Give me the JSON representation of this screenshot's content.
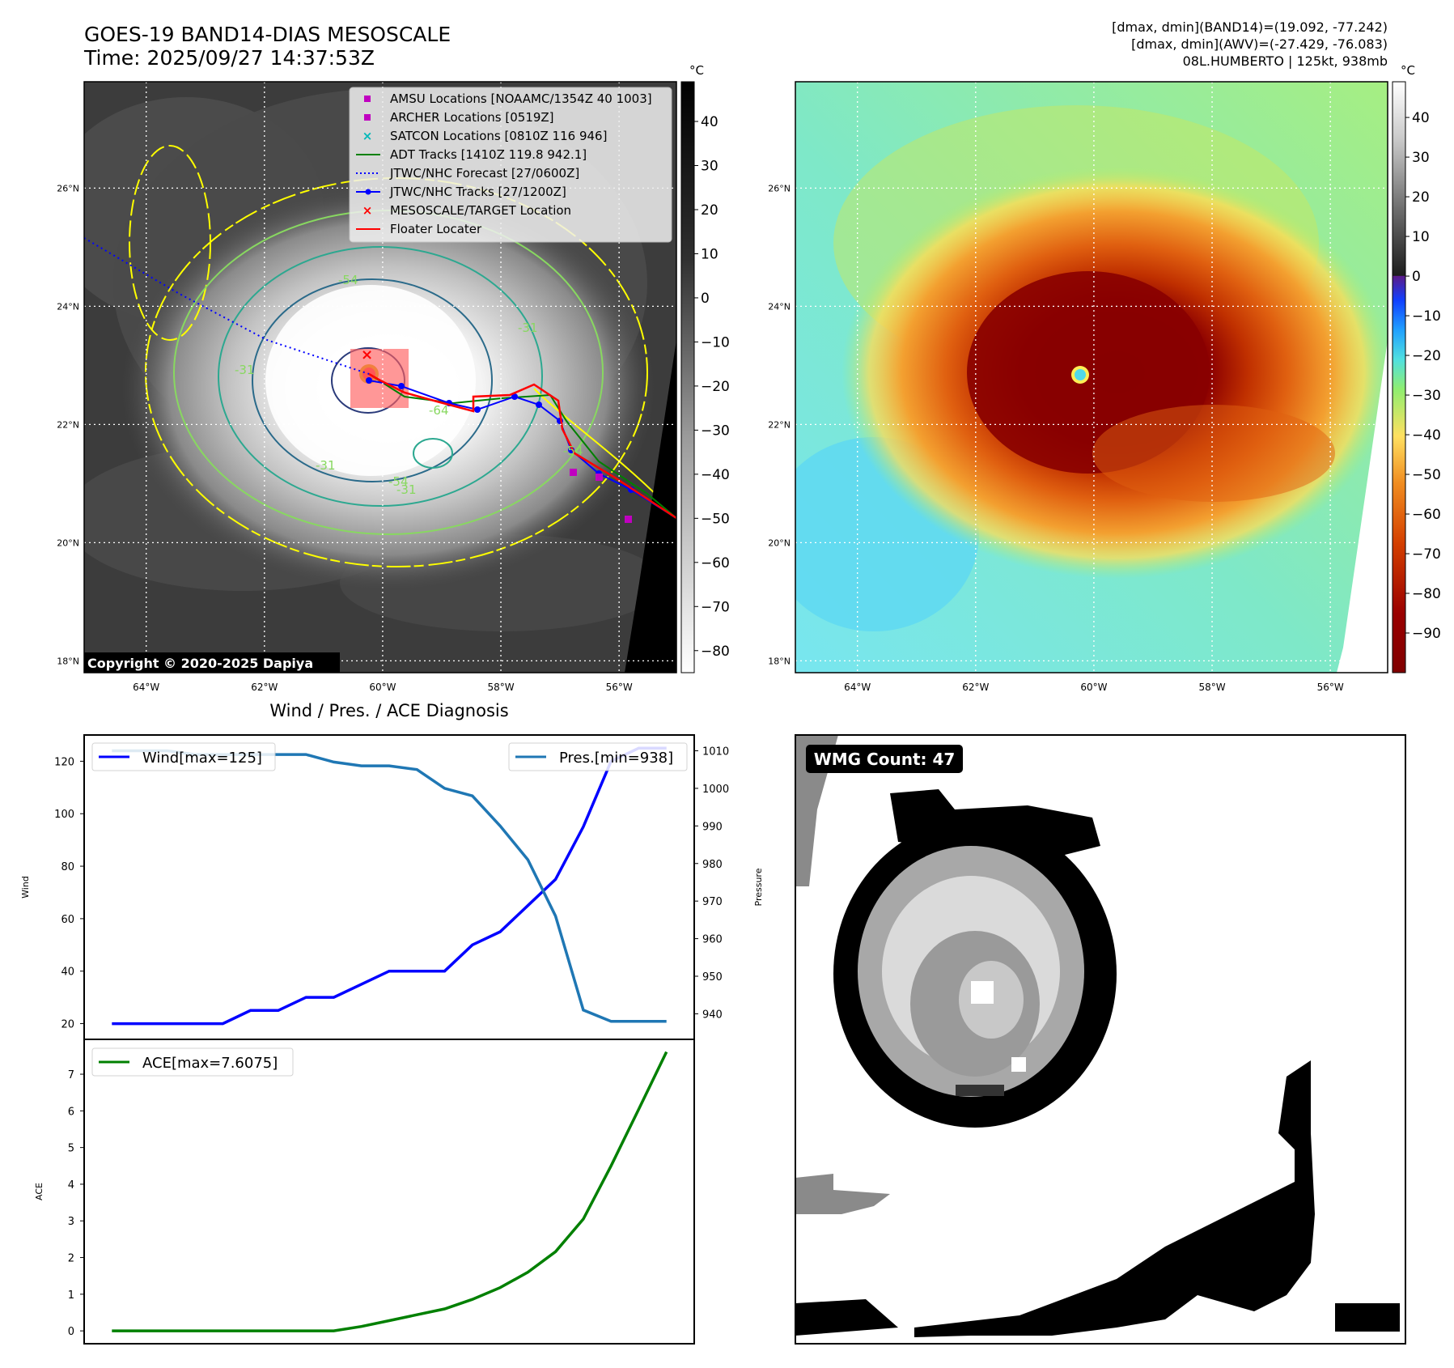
{
  "header": {
    "title_line1": "GOES-19 BAND14-DIAS MESOSCALE",
    "title_line2": "Time: 2025/09/27 14:37:53Z",
    "stats_line1": "[dmax, dmin](BAND14)=(19.092, -77.242)",
    "stats_line2": "[dmax, dmin](AWV)=(-27.429, -76.083)",
    "stats_line3": "08L.HUMBERTO | 125kt, 938mb"
  },
  "maps": {
    "lat_labels": [
      "26°N",
      "24°N",
      "22°N",
      "20°N",
      "18°N"
    ],
    "lat_values": [
      26,
      24,
      22,
      20,
      18
    ],
    "lon_labels": [
      "64°W",
      "62°W",
      "60°W",
      "58°W",
      "56°W"
    ],
    "lon_values": [
      -64,
      -62,
      -60,
      -58,
      -56
    ],
    "lon_range": [
      -65.05,
      -55.03
    ],
    "lat_range": [
      17.8,
      27.8
    ],
    "storm_center": [
      -60.2,
      22.65
    ],
    "copyright": "Copyright © 2020-2025 Dapiya",
    "contour_labels": [
      "-54",
      "-31",
      "-31",
      "-31",
      "-64",
      "-54",
      "-54",
      "-31"
    ]
  },
  "legend": [
    {
      "label": "AMSU Locations [NOAAMC/1354Z 40 1003]",
      "marker": "square",
      "color": "#c000c0"
    },
    {
      "label": "ARCHER Locations [0519Z]",
      "marker": "square",
      "color": "#c000c0"
    },
    {
      "label": "SATCON Locations [0810Z 116 946]",
      "marker": "x",
      "color": "#00b8b8"
    },
    {
      "label": "ADT Tracks [1410Z 119.8 942.1]",
      "marker": "line",
      "color": "#008000"
    },
    {
      "label": "JTWC/NHC Forecast [27/0600Z]",
      "marker": "dotted",
      "color": "#0000ff"
    },
    {
      "label": "JTWC/NHC Tracks [27/1200Z]",
      "marker": "line-dot",
      "color": "#0000ff"
    },
    {
      "label": "MESOSCALE/TARGET Location",
      "marker": "x",
      "color": "#ff0000"
    },
    {
      "label": "Floater Locater",
      "marker": "line",
      "color": "#ff0000"
    }
  ],
  "colorbar_left": {
    "unit": "°C",
    "ticks": [
      "40",
      "30",
      "20",
      "10",
      "0",
      "−10",
      "−20",
      "−30",
      "−40",
      "−50",
      "−60",
      "−70",
      "−80"
    ],
    "tick_values": [
      40,
      30,
      20,
      10,
      0,
      -10,
      -20,
      -30,
      -40,
      -50,
      -60,
      -70,
      -80
    ],
    "range": [
      -85,
      49
    ]
  },
  "colorbar_right": {
    "unit": "°C",
    "ticks": [
      "40",
      "30",
      "20",
      "10",
      "0",
      "−10",
      "−20",
      "−30",
      "−40",
      "−50",
      "−60",
      "−70",
      "−80",
      "−90"
    ],
    "tick_values": [
      40,
      30,
      20,
      10,
      0,
      -10,
      -20,
      -30,
      -40,
      -50,
      -60,
      -70,
      -80,
      -90
    ],
    "range": [
      -100,
      49
    ]
  },
  "diagnosis_title": "Wind / Pres. / ACE Diagnosis",
  "chart_data": [
    {
      "type": "line",
      "title": "Wind / Pres. / ACE Diagnosis",
      "ylabel": "Wind",
      "ylabel_right": "Pressure",
      "ylim": [
        14,
        130
      ],
      "ylim_right": [
        933.2,
        1014.2
      ],
      "xlim": [
        -1,
        21
      ],
      "yticks": [
        20,
        40,
        60,
        80,
        100,
        120
      ],
      "yticks_right": [
        940,
        950,
        960,
        970,
        980,
        990,
        1000,
        1010
      ],
      "x": [
        0,
        1,
        2,
        3,
        4,
        5,
        6,
        7,
        8,
        9,
        10,
        11,
        12,
        13,
        14,
        15,
        16,
        17,
        18,
        19,
        20
      ],
      "series": [
        {
          "name": "Wind[max=125]",
          "axis": "left",
          "color": "#0000ff",
          "values": [
            20,
            20,
            20,
            20,
            20,
            25,
            25,
            30,
            30,
            35,
            40,
            40,
            40,
            50,
            55,
            65,
            75,
            95,
            120,
            125,
            125
          ]
        },
        {
          "name": "Pres.[min=938]",
          "axis": "right",
          "color": "#1f77b4",
          "values": [
            1010,
            1010,
            1010,
            1009,
            1009,
            1009,
            1009,
            1009,
            1007,
            1006,
            1006,
            1005,
            1000,
            998,
            990,
            981,
            966,
            941,
            938,
            938,
            938
          ]
        }
      ]
    },
    {
      "type": "line",
      "ylabel": "ACE",
      "ylim": [
        -0.35,
        7.95
      ],
      "xlim": [
        -1,
        21
      ],
      "yticks": [
        0,
        1,
        2,
        3,
        4,
        5,
        6,
        7
      ],
      "x": [
        0,
        1,
        2,
        3,
        4,
        5,
        6,
        7,
        8,
        9,
        10,
        11,
        12,
        13,
        14,
        15,
        16,
        17,
        18,
        19,
        20
      ],
      "series": [
        {
          "name": "ACE[max=7.6075]",
          "color": "#008000",
          "values": [
            0,
            0,
            0,
            0,
            0,
            0,
            0,
            0,
            0,
            0.12,
            0.28,
            0.44,
            0.6,
            0.86,
            1.18,
            1.6,
            2.16,
            3.05,
            4.5,
            6.05,
            7.6075
          ]
        }
      ]
    }
  ],
  "wmg": {
    "badge": "WMG Count: 47"
  }
}
